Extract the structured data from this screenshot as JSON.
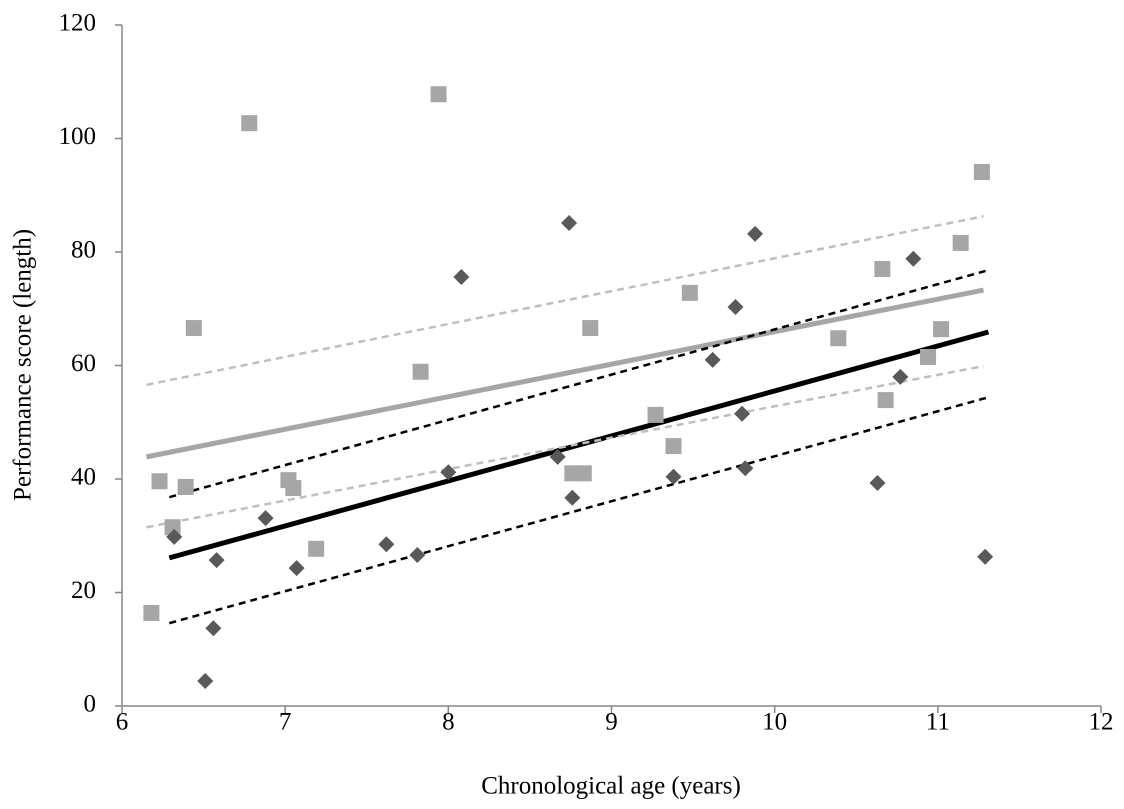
{
  "chart_data": {
    "type": "scatter",
    "x_label": "Chronological age (years)",
    "y_label": "Performance score (length)",
    "xlim": [
      6,
      12
    ],
    "xticks": [
      6,
      7,
      8,
      9,
      10,
      11,
      12
    ],
    "ylim": [
      0,
      120
    ],
    "yticks": [
      0,
      20,
      40,
      60,
      80,
      100,
      120
    ],
    "grid": false,
    "series": [
      {
        "color": "#a6a6a6",
        "marker": "square",
        "x": [
          6.18,
          6.23,
          6.31,
          6.39,
          6.44,
          6.78,
          7.02,
          7.05,
          7.19,
          7.83,
          7.94,
          8.76,
          8.83,
          8.87,
          9.27,
          9.38,
          9.48,
          10.39,
          10.66,
          10.68,
          10.94,
          11.02,
          11.14,
          11.27
        ],
        "values": [
          16.4,
          39.6,
          31.5,
          38.6,
          66.6,
          102.7,
          39.8,
          38.4,
          27.7,
          58.9,
          107.8,
          41,
          41,
          66.6,
          51.3,
          45.8,
          72.8,
          64.8,
          77,
          53.9,
          61.5,
          66.4,
          81.6,
          94.1
        ]
      },
      {
        "color": "#595959",
        "marker": "diamond",
        "x": [
          6.32,
          6.51,
          6.56,
          6.58,
          6.88,
          7.07,
          7.62,
          7.81,
          8.0,
          8.08,
          8.67,
          8.74,
          8.76,
          9.38,
          9.62,
          9.76,
          9.8,
          9.82,
          9.88,
          10.63,
          10.77,
          10.85,
          11.29
        ],
        "values": [
          29.8,
          4.4,
          13.7,
          25.7,
          33.1,
          24.3,
          28.5,
          26.6,
          41.2,
          75.6,
          43.9,
          85.1,
          36.7,
          40.4,
          61,
          70.3,
          51.5,
          41.9,
          83.2,
          39.3,
          58,
          78.8,
          26.3
        ]
      }
    ],
    "lines": [
      {
        "color": "#a6a6a6",
        "dashed": false,
        "width": 5,
        "x": [
          6.15,
          11.28
        ],
        "values": [
          43.9,
          73.3
        ]
      },
      {
        "color": "#000000",
        "dashed": false,
        "width": 5,
        "x": [
          6.29,
          11.31
        ],
        "values": [
          26.1,
          65.9
        ]
      },
      {
        "color": "#bfbfbf",
        "dashed": true,
        "width": 2.5,
        "x": [
          6.15,
          11.28
        ],
        "values": [
          56.6,
          86.3
        ]
      },
      {
        "color": "#bfbfbf",
        "dashed": true,
        "width": 2.5,
        "x": [
          6.15,
          11.28
        ],
        "values": [
          31.5,
          59.9
        ]
      },
      {
        "color": "#000000",
        "dashed": true,
        "width": 2.5,
        "x": [
          6.29,
          11.31
        ],
        "values": [
          36.8,
          76.8
        ]
      },
      {
        "color": "#000000",
        "dashed": true,
        "width": 2.5,
        "x": [
          6.29,
          11.31
        ],
        "values": [
          14.6,
          54.4
        ]
      }
    ]
  }
}
